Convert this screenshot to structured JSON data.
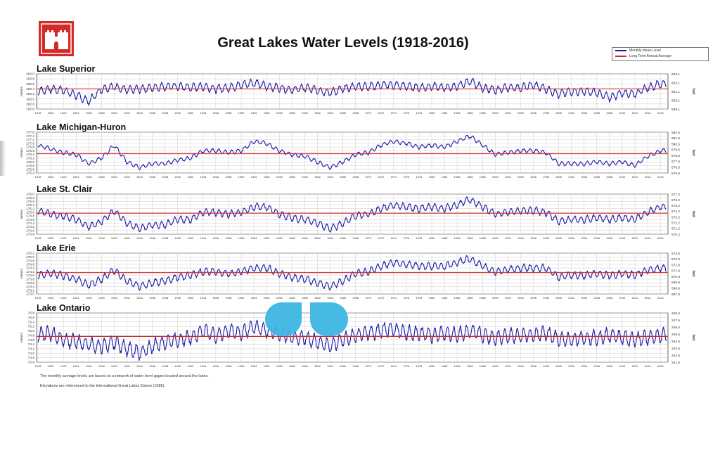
{
  "title": "Great Lakes Water Levels (1918-2016)",
  "legend": {
    "items": [
      {
        "label": "Monthly Mean Level",
        "color": "#1a1aa6"
      },
      {
        "label": "Long Term Annual Average",
        "color": "#d42a2a"
      }
    ]
  },
  "notes": [
    "The monthly average levels are based on a network of water level gages located around the lakes.",
    "Elevations are referenced to the International Great Lakes Datum (1985)."
  ],
  "chart_data": [
    {
      "type": "line",
      "title": "Lake Superior",
      "ylabel": "meters",
      "y2label": "feet",
      "ylim": [
        182.6,
        184.0
      ],
      "yticks": [
        "182.6",
        "182.8",
        "183.0",
        "183.2",
        "183.4",
        "183.6",
        "183.8",
        "184.0"
      ],
      "y2ticks": [
        "599.1",
        "600.1",
        "601.1",
        "602.1",
        "603.1"
      ],
      "average": 183.4,
      "seasonal_amplitude": 0.15,
      "x_start": 1918,
      "x_step": 2,
      "values": [
        183.3,
        183.4,
        183.35,
        183.15,
        182.9,
        183.4,
        183.5,
        183.35,
        183.4,
        183.45,
        183.5,
        183.5,
        183.45,
        183.5,
        183.4,
        183.45,
        183.55,
        183.65,
        183.5,
        183.45,
        183.35,
        183.45,
        183.35,
        183.25,
        183.4,
        183.5,
        183.5,
        183.55,
        183.55,
        183.5,
        183.45,
        183.5,
        183.45,
        183.5,
        183.7,
        183.45,
        183.35,
        183.45,
        183.45,
        183.55,
        183.4,
        183.2,
        183.3,
        183.3,
        183.25,
        183.05,
        183.25,
        183.2,
        183.45,
        183.6
      ]
    },
    {
      "type": "line",
      "title": "Lake Michigan-Huron",
      "ylabel": "meters",
      "y2label": "feet",
      "ylim": [
        175.4,
        177.6
      ],
      "yticks": [
        "175.4",
        "175.6",
        "175.8",
        "176.0",
        "176.2",
        "176.4",
        "176.6",
        "176.8",
        "177.0",
        "177.2",
        "177.4",
        "177.6"
      ],
      "y2ticks": [
        "575.5",
        "576.5",
        "577.5",
        "578.5",
        "579.5",
        "580.5",
        "581.5",
        "582.5"
      ],
      "average": 176.45,
      "seasonal_amplitude": 0.1,
      "x_start": 1918,
      "x_step": 2,
      "values": [
        176.9,
        176.7,
        176.5,
        176.4,
        175.9,
        176.2,
        176.9,
        176.0,
        175.7,
        175.9,
        175.9,
        176.1,
        176.2,
        176.6,
        176.6,
        176.5,
        176.6,
        177.1,
        177.0,
        176.6,
        176.4,
        176.3,
        176.0,
        175.7,
        176.0,
        176.4,
        176.5,
        176.9,
        177.1,
        177.0,
        176.8,
        176.9,
        176.8,
        177.1,
        177.4,
        176.9,
        176.4,
        176.5,
        176.6,
        176.6,
        176.5,
        175.9,
        175.9,
        175.9,
        176.0,
        175.9,
        176.0,
        175.8,
        176.3,
        176.6
      ]
    },
    {
      "type": "line",
      "title": "Lake St. Clair",
      "ylabel": "meters",
      "y2label": "feet",
      "ylim": [
        173.8,
        176.0
      ],
      "yticks": [
        "173.8",
        "174.0",
        "174.2",
        "174.4",
        "174.6",
        "174.8",
        "175.0",
        "175.2",
        "175.4",
        "175.6",
        "175.8",
        "176.0"
      ],
      "y2ticks": [
        "570.2",
        "571.2",
        "572.2",
        "573.2",
        "574.2",
        "575.2",
        "576.2",
        "577.2"
      ],
      "average": 174.95,
      "seasonal_amplitude": 0.18,
      "x_start": 1918,
      "x_step": 2,
      "values": [
        175.1,
        174.9,
        174.8,
        174.6,
        174.2,
        174.5,
        175.1,
        174.4,
        174.1,
        174.3,
        174.3,
        174.6,
        174.6,
        175.0,
        175.0,
        174.9,
        175.0,
        175.3,
        175.3,
        174.9,
        174.7,
        174.6,
        174.4,
        174.1,
        174.4,
        174.8,
        174.9,
        175.2,
        175.4,
        175.3,
        175.2,
        175.3,
        175.2,
        175.4,
        175.7,
        175.3,
        174.9,
        175.0,
        175.1,
        175.1,
        175.0,
        174.5,
        174.6,
        174.6,
        174.7,
        174.6,
        174.7,
        174.6,
        175.0,
        175.3
      ]
    },
    {
      "type": "line",
      "title": "Lake Erie",
      "ylabel": "meters",
      "y2label": "feet",
      "ylim": [
        173.0,
        175.2
      ],
      "yticks": [
        "173.0",
        "173.2",
        "173.4",
        "173.6",
        "173.8",
        "174.0",
        "174.2",
        "174.4",
        "174.6",
        "174.8",
        "175.0",
        "175.2"
      ],
      "y2ticks": [
        "567.6",
        "568.6",
        "569.6",
        "570.6",
        "571.6",
        "572.6",
        "573.6",
        "574.6"
      ],
      "average": 174.15,
      "seasonal_amplitude": 0.18,
      "x_start": 1918,
      "x_step": 2,
      "values": [
        174.0,
        174.1,
        174.0,
        173.8,
        173.5,
        173.8,
        174.3,
        173.7,
        173.4,
        173.6,
        173.7,
        173.9,
        174.0,
        174.2,
        174.2,
        174.1,
        174.2,
        174.4,
        174.4,
        174.1,
        173.9,
        173.8,
        173.6,
        173.4,
        173.7,
        174.1,
        174.2,
        174.5,
        174.7,
        174.6,
        174.5,
        174.5,
        174.5,
        174.7,
        174.9,
        174.5,
        174.2,
        174.3,
        174.4,
        174.4,
        174.4,
        173.9,
        174.0,
        174.0,
        174.1,
        174.0,
        174.1,
        174.0,
        174.3,
        174.4
      ]
    },
    {
      "type": "line",
      "title": "Lake Ontario",
      "ylabel": "meters",
      "y2label": "feet",
      "ylim": [
        73.6,
        75.8
      ],
      "yticks": [
        "73.6",
        "73.8",
        "74.0",
        "74.2",
        "74.4",
        "74.6",
        "74.8",
        "75.0",
        "75.2",
        "75.4",
        "75.6",
        "75.8"
      ],
      "y2ticks": [
        "241.5",
        "242.5",
        "243.5",
        "244.5",
        "245.5",
        "246.5",
        "247.5",
        "248.5"
      ],
      "average": 74.75,
      "seasonal_amplitude": 0.3,
      "x_start": 1918,
      "x_step": 2,
      "values": [
        74.8,
        74.9,
        74.6,
        74.5,
        74.4,
        74.3,
        74.5,
        74.2,
        74.0,
        74.3,
        74.5,
        74.6,
        74.7,
        75.0,
        74.8,
        75.0,
        74.9,
        75.2,
        75.0,
        74.9,
        74.7,
        74.7,
        74.5,
        74.3,
        74.6,
        74.8,
        74.9,
        75.0,
        75.1,
        74.9,
        74.9,
        74.8,
        74.9,
        74.8,
        75.0,
        74.8,
        74.7,
        74.8,
        74.8,
        74.8,
        74.9,
        74.6,
        74.6,
        74.7,
        74.7,
        74.8,
        74.7,
        74.6,
        74.7,
        74.8
      ]
    }
  ],
  "x_ticks": [
    "1918",
    "1920",
    "1922",
    "1924",
    "1926",
    "1928",
    "1930",
    "1932",
    "1934",
    "1936",
    "1938",
    "1940",
    "1942",
    "1944",
    "1946",
    "1948",
    "1950",
    "1952",
    "1954",
    "1956",
    "1958",
    "1960",
    "1962",
    "1964",
    "1966",
    "1968",
    "1970",
    "1972",
    "1974",
    "1976",
    "1978",
    "1980",
    "1982",
    "1984",
    "1986",
    "1988",
    "1990",
    "1992",
    "1994",
    "1996",
    "1998",
    "2000",
    "2002",
    "2004",
    "2006",
    "2008",
    "2010",
    "2012",
    "2014",
    "2016"
  ]
}
